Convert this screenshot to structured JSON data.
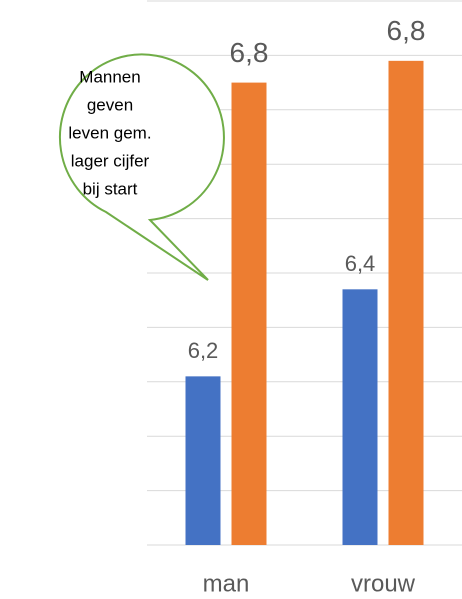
{
  "chart_data": {
    "type": "bar",
    "categories": [
      "man",
      "vrouw"
    ],
    "series": [
      {
        "color": "#4472c4",
        "values": [
          6.21,
          6.37
        ],
        "value_labels": [
          "6,2",
          "6,4"
        ]
      },
      {
        "color": "#ed7d31",
        "values": [
          6.75,
          6.79
        ],
        "value_labels": [
          "6,8",
          "6,8"
        ]
      }
    ],
    "ylim": [
      5.9,
      6.9
    ],
    "yticks": [
      5.9,
      6.0,
      6.1,
      6.2,
      6.3,
      6.4,
      6.5,
      6.6,
      6.7,
      6.8,
      6.9
    ],
    "grid": true,
    "annotation": [
      "Mannen",
      "geven",
      "leven gem.",
      "lager cijfer",
      "bij start"
    ]
  }
}
